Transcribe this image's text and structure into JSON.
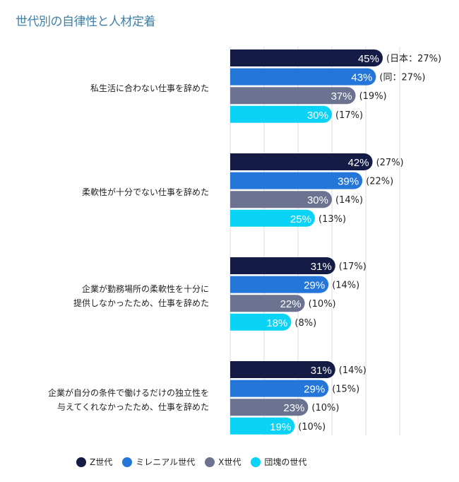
{
  "chart_data": {
    "type": "bar",
    "orientation": "horizontal",
    "title": "世代別の自律性と人材定着",
    "categories": [
      "私生活に合わない仕事を辞めた",
      "柔軟性が十分でない仕事を辞めた",
      "企業が勤務場所の柔軟性を十分に\n提供しなかったため、仕事を辞めた",
      "企業が自分の条件で働けるだけの独立性を\n与えてくれなかったため、仕事を辞めた"
    ],
    "series": [
      {
        "name": "Z世代",
        "color": "#141c45",
        "values": [
          45,
          42,
          31,
          31
        ],
        "japan_labels": [
          "(日本：27%)",
          "(27%)",
          "(17%)",
          "(14%)"
        ]
      },
      {
        "name": "ミレニアル世代",
        "color": "#2477d8",
        "values": [
          43,
          39,
          29,
          29
        ],
        "japan_labels": [
          "(同：27%)",
          "(22%)",
          "(14%)",
          "(15%)"
        ]
      },
      {
        "name": "X世代",
        "color": "#6c7390",
        "values": [
          37,
          30,
          22,
          23
        ],
        "japan_labels": [
          "(19%)",
          "(14%)",
          "(10%)",
          "(10%)"
        ]
      },
      {
        "name": "団塊の世代",
        "color": "#0bd3f5",
        "values": [
          30,
          25,
          18,
          19
        ],
        "japan_labels": [
          "(17%)",
          "(13%)",
          "(8%)",
          "(10%)"
        ]
      }
    ],
    "xlim": [
      0,
      50
    ],
    "grid": true,
    "legend_position": "bottom",
    "value_suffix": "%"
  }
}
